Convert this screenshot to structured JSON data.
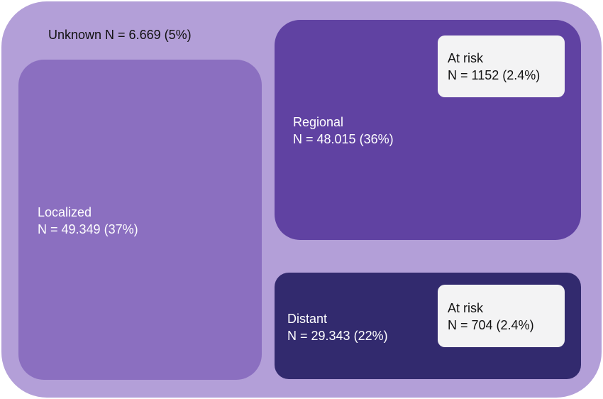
{
  "unknown": {
    "label": "Unknown N = 6.669 (5%)"
  },
  "localized": {
    "name": "Localized",
    "count": "N = 49.349 (37%)"
  },
  "regional": {
    "name": "Regional",
    "count": "N = 48.015 (36%)",
    "at_risk": {
      "name": "At risk",
      "count": "N = 1152 (2.4%)"
    }
  },
  "distant": {
    "name": "Distant",
    "count": "N = 29.343 (22%)",
    "at_risk": {
      "name": "At risk",
      "count": "N = 704 (2.4%)"
    }
  },
  "colors": {
    "unknown": "#b39fd8",
    "localized": "#8b6fc0",
    "regional": "#6042a2",
    "distant": "#322a6e",
    "at_risk": "#f3f3f4"
  }
}
